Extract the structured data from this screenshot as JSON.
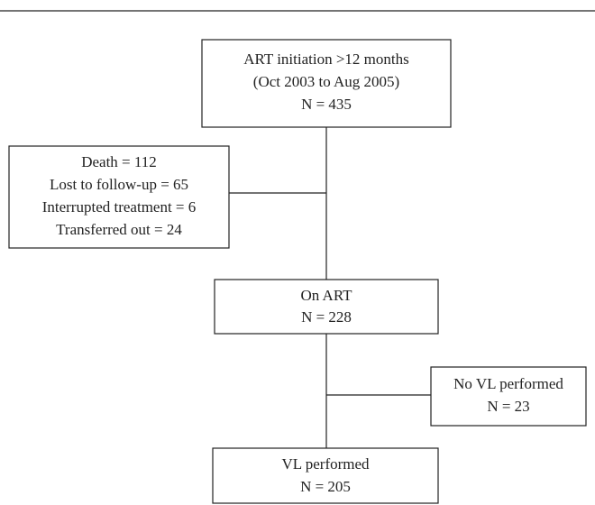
{
  "nodes": [
    {
      "lines": [
        "ART initiation >12 months",
        "(Oct 2003 to Aug 2005)",
        "N = 435"
      ]
    },
    {
      "lines": [
        "Death = 112",
        "Lost to follow-up = 65",
        "Interrupted treatment = 6",
        "Transferred out = 24"
      ]
    },
    {
      "lines": [
        "On ART",
        "N = 228"
      ]
    },
    {
      "lines": [
        "No VL performed",
        "N = 23"
      ]
    },
    {
      "lines": [
        "VL performed",
        "N = 205"
      ]
    }
  ]
}
